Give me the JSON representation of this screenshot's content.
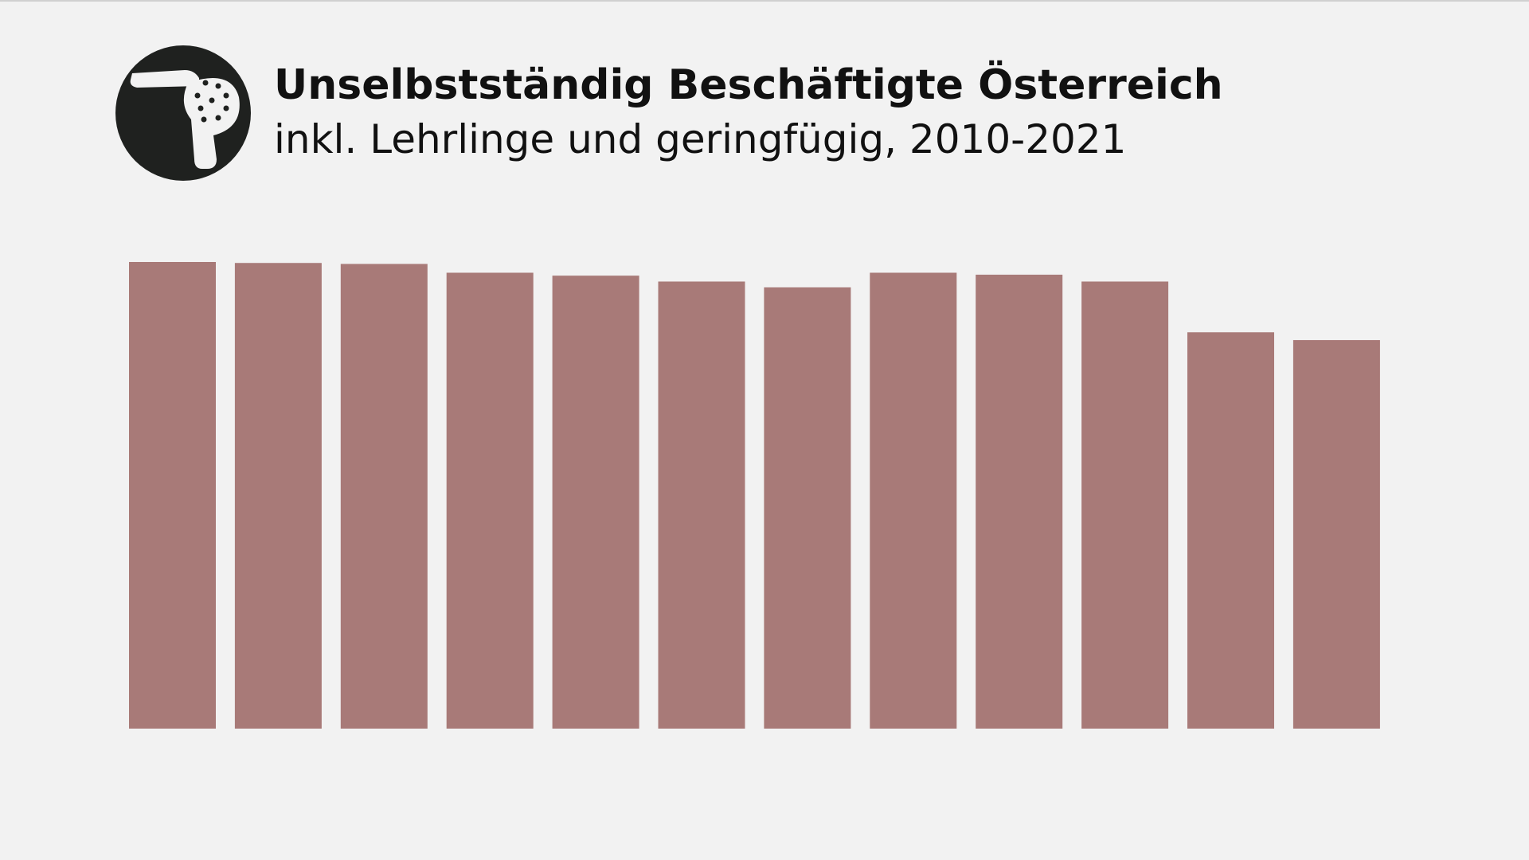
{
  "chart_data": {
    "type": "bar",
    "title": "Unselbstständig Beschäftigte Österreich",
    "subtitle": "inkl. Lehrlinge und geringfügig, 2010-2021",
    "categories": [
      null,
      null,
      null,
      null,
      null,
      null,
      null,
      null,
      null,
      null,
      null,
      null
    ],
    "values": [
      478,
      477,
      476,
      467,
      464,
      458,
      452,
      467,
      465,
      458,
      406,
      398
    ],
    "color": "#a87a78",
    "ylim": [
      0,
      478
    ]
  }
}
